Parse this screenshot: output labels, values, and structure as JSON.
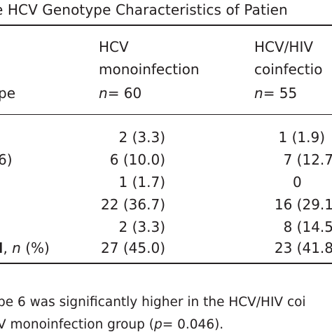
{
  "table": {
    "title": "e HCV Genotype Characteristics of Patien",
    "header": {
      "row_label_fragment": "pe",
      "col1_line1": "HCV",
      "col1_line2": "monoinfection",
      "col1_n": "= 60",
      "col2_line1": "HCV/HIV",
      "col2_line2": "coinfectio",
      "col2_n": "= 55",
      "n_symbol": "n"
    },
    "rows": [
      {
        "label": "",
        "mono": "2 (3.3)",
        "co": "1 (1.9)"
      },
      {
        "label": "6)",
        "mono": "6 (10.0)",
        "co": "7 (12.7"
      },
      {
        "label": "",
        "mono": "1 (1.7)",
        "co": "0"
      },
      {
        "label": "",
        "mono": "22 (36.7)",
        "co": "16 (29.1"
      },
      {
        "label": "",
        "mono": "2 (3.3)",
        "co": "8 (14.5"
      },
      {
        "label_bold": "I",
        "label_n": "n",
        "label_rest": "(%)",
        "mono": "27 (45.0)",
        "co": "23 (41.8"
      }
    ],
    "footnote": {
      "line1": "pe 6 was significantly higher in the HCV/HIV coi",
      "line2_prefix": "V monoinfection group (",
      "line2_p": "p",
      "line2_suffix": "= 0.046)."
    }
  }
}
